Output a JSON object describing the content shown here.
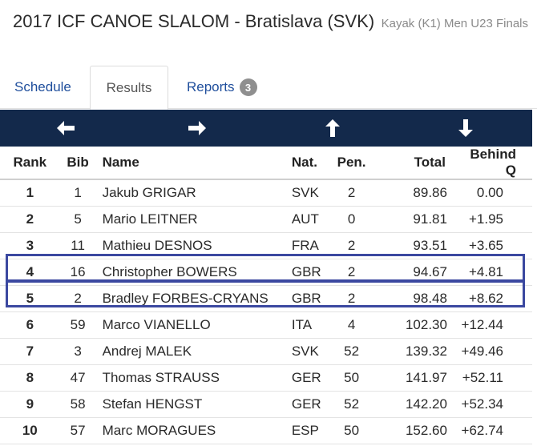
{
  "header": {
    "title": "2017 ICF CANOE SLALOM - Bratislava (SVK)",
    "subtitle": "Kayak (K1) Men U23 Finals"
  },
  "tabs": [
    {
      "label": "Schedule"
    },
    {
      "label": "Results",
      "active": true
    },
    {
      "label": "Reports",
      "badge": "3"
    }
  ],
  "navbar": {
    "background": "#13294b",
    "buttons": [
      "arrow-left-icon",
      "arrow-right-icon",
      "arrow-up-icon",
      "arrow-down-icon"
    ]
  },
  "table": {
    "columns": [
      "Rank",
      "Bib",
      "Name",
      "Nat.",
      "Pen.",
      "Total",
      "Behind Q"
    ],
    "rows": [
      [
        "1",
        "1",
        "Jakub GRIGAR",
        "SVK",
        "2",
        "89.86",
        "0.00"
      ],
      [
        "2",
        "5",
        "Mario LEITNER",
        "AUT",
        "0",
        "91.81",
        "+1.95"
      ],
      [
        "3",
        "11",
        "Mathieu DESNOS",
        "FRA",
        "2",
        "93.51",
        "+3.65"
      ],
      [
        "4",
        "16",
        "Christopher BOWERS",
        "GBR",
        "2",
        "94.67",
        "+4.81"
      ],
      [
        "5",
        "2",
        "Bradley FORBES-CRYANS",
        "GBR",
        "2",
        "98.48",
        "+8.62"
      ],
      [
        "6",
        "59",
        "Marco VIANELLO",
        "ITA",
        "4",
        "102.30",
        "+12.44"
      ],
      [
        "7",
        "3",
        "Andrej MALEK",
        "SVK",
        "52",
        "139.32",
        "+49.46"
      ],
      [
        "8",
        "47",
        "Thomas STRAUSS",
        "GER",
        "50",
        "141.97",
        "+52.11"
      ],
      [
        "9",
        "58",
        "Stefan HENGST",
        "GER",
        "52",
        "142.20",
        "+52.34"
      ],
      [
        "10",
        "57",
        "Marc MORAGUES",
        "ESP",
        "50",
        "152.60",
        "+62.74"
      ]
    ],
    "highlighted_rows": [
      3,
      4
    ],
    "highlight_color": "#3b48a0"
  }
}
